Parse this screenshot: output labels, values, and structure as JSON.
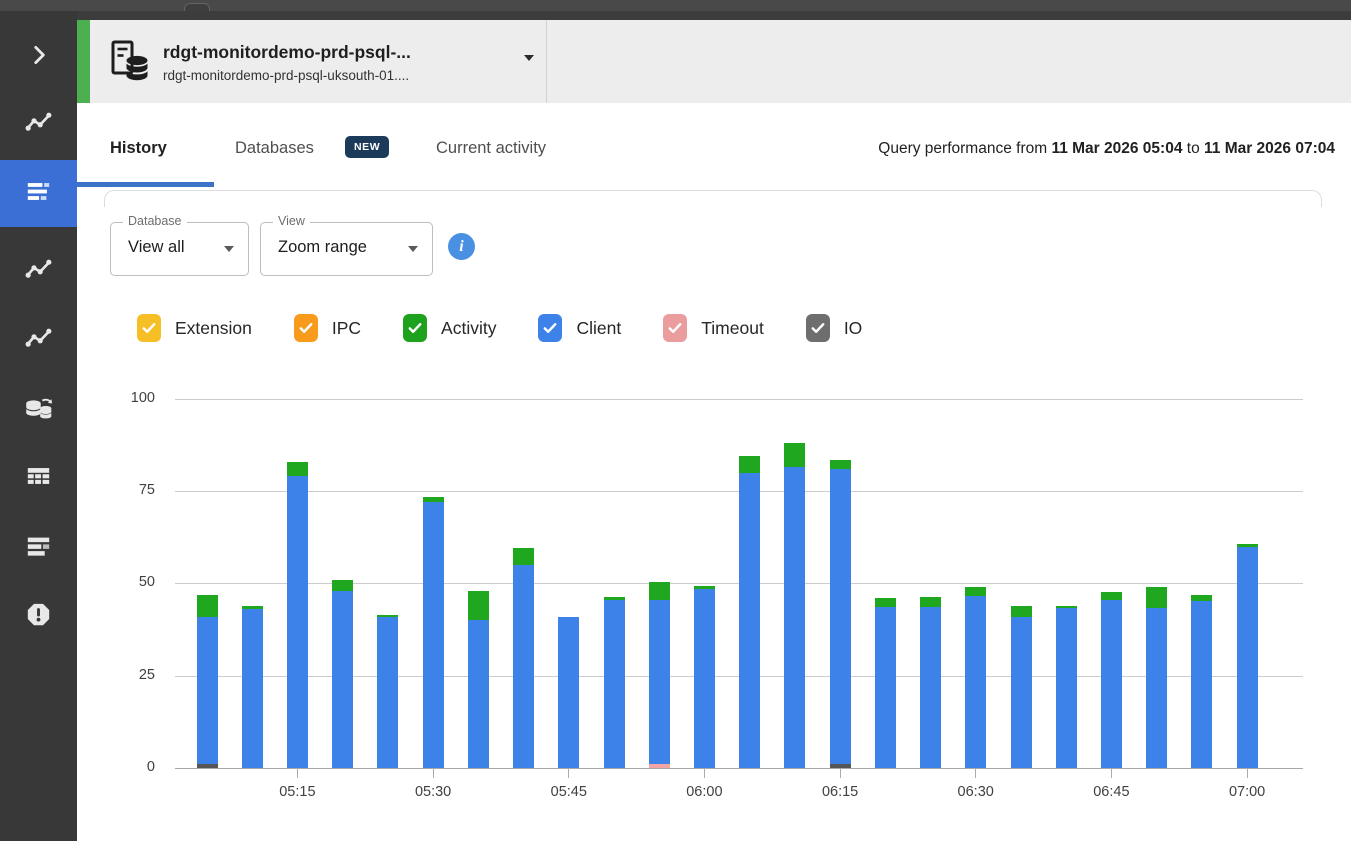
{
  "window": {
    "top_notch": "scrolled-panel-edge"
  },
  "sidebar": {
    "items": [
      {
        "icon": "chevron-right-icon",
        "active": false
      },
      {
        "icon": "line-chart-icon",
        "active": false
      },
      {
        "icon": "query-history-icon",
        "active": true
      },
      {
        "icon": "line-chart-icon",
        "active": false
      },
      {
        "icon": "line-chart-icon",
        "active": false
      },
      {
        "icon": "databases-sync-icon",
        "active": false
      },
      {
        "icon": "table-grid-icon",
        "active": false
      },
      {
        "icon": "list-bars-icon",
        "active": false
      },
      {
        "icon": "alert-octagon-icon",
        "active": false
      }
    ]
  },
  "header": {
    "title": "rdgt-monitordemo-prd-psql-...",
    "subtitle": "rdgt-monitordemo-prd-psql-uksouth-01....",
    "entity_icon": "database-server-icon",
    "accent_color": "#4caf50"
  },
  "tabs": {
    "items": [
      {
        "label": "History",
        "active": true
      },
      {
        "label": "Databases",
        "badge": "NEW",
        "active": false
      },
      {
        "label": "Current activity",
        "active": false
      }
    ]
  },
  "summary": {
    "prefix": "Query performance from ",
    "start": "11 Mar 2026 05:04",
    "mid": " to ",
    "end": "11 Mar 2026 07:04"
  },
  "filters": {
    "database": {
      "label": "Database",
      "value": "View all"
    },
    "view": {
      "label": "View",
      "value": "Zoom range"
    },
    "info_icon": "info-icon"
  },
  "legend": [
    {
      "label": "Extension",
      "color": "#f6bf26",
      "checked": true
    },
    {
      "label": "IPC",
      "color": "#f89b1c",
      "checked": true
    },
    {
      "label": "Activity",
      "color": "#1ea21e",
      "checked": true
    },
    {
      "label": "Client",
      "color": "#3d82e8",
      "checked": true
    },
    {
      "label": "Timeout",
      "color": "#eb9d9d",
      "checked": true
    },
    {
      "label": "IO",
      "color": "#6e6e6e",
      "checked": true
    }
  ],
  "colors": {
    "tab_accent_blue": "#3b73c8",
    "sidebar_active_blue": "#3b6fd6",
    "info_icon_blue": "#4a90e2",
    "new_badge_navy": "#1c3b5a"
  },
  "chart_data": {
    "type": "bar",
    "stacked": true,
    "ylim": [
      0,
      100
    ],
    "y_ticks": [
      0,
      25,
      50,
      75,
      100
    ],
    "x_tick_labels": [
      "05:15",
      "05:30",
      "05:45",
      "06:00",
      "06:15",
      "06:30",
      "06:45",
      "07:00"
    ],
    "x_tick_first_index": 2,
    "x_tick_step": 3,
    "grid": true,
    "legend_position": "above-chart",
    "series_colors": {
      "io": "#565656",
      "timeout": "#f2a5a5",
      "client": "#3d82e8",
      "activity": "#1fa81f"
    },
    "stack_order": [
      "io",
      "timeout",
      "client",
      "activity"
    ],
    "bars": [
      {
        "time": "05:05",
        "io": 1,
        "timeout": 0,
        "client": 40,
        "activity": 6
      },
      {
        "time": "05:10",
        "io": 0,
        "timeout": 0,
        "client": 43,
        "activity": 1
      },
      {
        "time": "05:15",
        "io": 0,
        "timeout": 0,
        "client": 79,
        "activity": 4
      },
      {
        "time": "05:20",
        "io": 0,
        "timeout": 0,
        "client": 48,
        "activity": 3
      },
      {
        "time": "05:25",
        "io": 0,
        "timeout": 0,
        "client": 41,
        "activity": 0.5
      },
      {
        "time": "05:30",
        "io": 0,
        "timeout": 0,
        "client": 72,
        "activity": 1.5
      },
      {
        "time": "05:35",
        "io": 0,
        "timeout": 0,
        "client": 40,
        "activity": 8
      },
      {
        "time": "05:40",
        "io": 0,
        "timeout": 0,
        "client": 55,
        "activity": 4.5
      },
      {
        "time": "05:45",
        "io": 0,
        "timeout": 0,
        "client": 41,
        "activity": 0
      },
      {
        "time": "05:50",
        "io": 0,
        "timeout": 0,
        "client": 45.5,
        "activity": 0.7
      },
      {
        "time": "05:55",
        "io": 0,
        "timeout": 1,
        "client": 44.5,
        "activity": 5
      },
      {
        "time": "06:00",
        "io": 0,
        "timeout": 0,
        "client": 48.5,
        "activity": 0.7
      },
      {
        "time": "06:05",
        "io": 0,
        "timeout": 0,
        "client": 80,
        "activity": 4.5
      },
      {
        "time": "06:10",
        "io": 0,
        "timeout": 0,
        "client": 81.5,
        "activity": 6.5
      },
      {
        "time": "06:15",
        "io": 1,
        "timeout": 0,
        "client": 80,
        "activity": 2.5
      },
      {
        "time": "06:20",
        "io": 0,
        "timeout": 0,
        "client": 43.5,
        "activity": 2.5
      },
      {
        "time": "06:25",
        "io": 0,
        "timeout": 0,
        "client": 43.5,
        "activity": 2.8
      },
      {
        "time": "06:30",
        "io": 0,
        "timeout": 0,
        "client": 46.5,
        "activity": 2.5
      },
      {
        "time": "06:35",
        "io": 0,
        "timeout": 0,
        "client": 41,
        "activity": 3
      },
      {
        "time": "06:40",
        "io": 0,
        "timeout": 0,
        "client": 43.3,
        "activity": 0.5
      },
      {
        "time": "06:45",
        "io": 0,
        "timeout": 0,
        "client": 45.5,
        "activity": 2.3
      },
      {
        "time": "06:50",
        "io": 0,
        "timeout": 0,
        "client": 43.3,
        "activity": 5.7
      },
      {
        "time": "06:55",
        "io": 0,
        "timeout": 0,
        "client": 45.3,
        "activity": 1.7
      },
      {
        "time": "07:00",
        "io": 0,
        "timeout": 0,
        "client": 60,
        "activity": 0.8
      }
    ]
  }
}
